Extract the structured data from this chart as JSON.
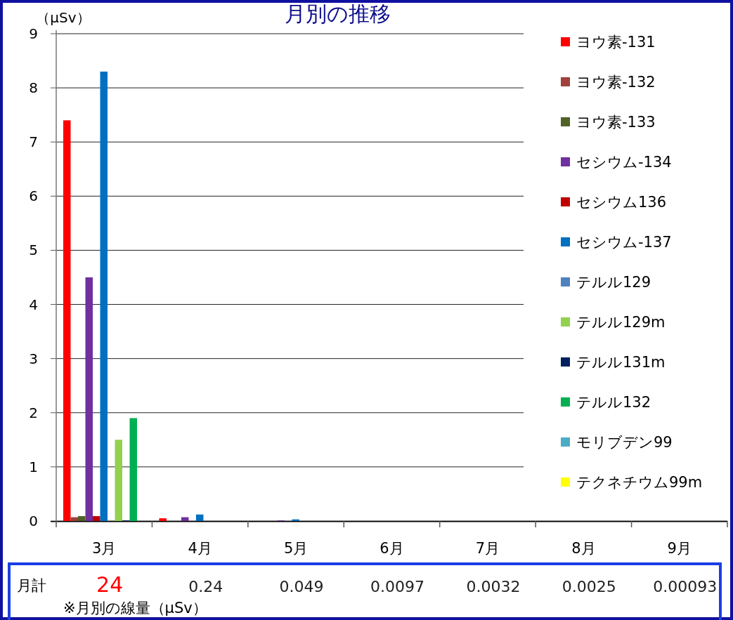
{
  "chart_data": {
    "type": "bar",
    "title": "月別の推移",
    "ylabel": "（μSv）",
    "categories": [
      "3月",
      "4月",
      "5月",
      "6月",
      "7月",
      "8月",
      "9月"
    ],
    "series": [
      {
        "name": "ヨウ素-131",
        "color": "#ff0000",
        "values": [
          7.4,
          0.05,
          0,
          0,
          0,
          0,
          0
        ]
      },
      {
        "name": "ヨウ素-132",
        "color": "#a0413c",
        "values": [
          0.07,
          0,
          0,
          0,
          0,
          0,
          0
        ]
      },
      {
        "name": "ヨウ素-133",
        "color": "#4f6228",
        "values": [
          0.09,
          0,
          0,
          0,
          0,
          0,
          0
        ]
      },
      {
        "name": "セシウム-134",
        "color": "#7030a0",
        "values": [
          4.5,
          0.07,
          0.01,
          0,
          0,
          0,
          0
        ]
      },
      {
        "name": "セシウム136",
        "color": "#c00000",
        "values": [
          0.09,
          0,
          0,
          0,
          0,
          0,
          0
        ]
      },
      {
        "name": "セシウム-137",
        "color": "#0070c0",
        "values": [
          8.3,
          0.12,
          0.03,
          0,
          0,
          0,
          0
        ]
      },
      {
        "name": "テルル129",
        "color": "#4f81bd",
        "values": [
          0,
          0,
          0,
          0,
          0,
          0,
          0
        ]
      },
      {
        "name": "テルル129m",
        "color": "#92d050",
        "values": [
          1.5,
          0,
          0,
          0,
          0,
          0,
          0
        ]
      },
      {
        "name": "テルル131m",
        "color": "#002060",
        "values": [
          0.01,
          0,
          0,
          0,
          0,
          0,
          0
        ]
      },
      {
        "name": "テルル132",
        "color": "#00b050",
        "values": [
          1.9,
          0,
          0,
          0,
          0,
          0,
          0
        ]
      },
      {
        "name": "モリブデン99",
        "color": "#4bacc6",
        "values": [
          0,
          0,
          0,
          0,
          0,
          0,
          0
        ]
      },
      {
        "name": "テクネチウム99m",
        "color": "#ffff00",
        "values": [
          0,
          0,
          0,
          0,
          0,
          0,
          0
        ]
      }
    ],
    "ylim": [
      0,
      9
    ],
    "yticks": [
      0,
      1,
      2,
      3,
      4,
      5,
      6,
      7,
      8,
      9
    ],
    "grid": "y",
    "legend": "right",
    "annotations": [
      "月計",
      "24",
      "0.24",
      "0.049",
      "0.0097",
      "0.0032",
      "0.0025",
      "0.00093",
      "※月別の線量（μSv）"
    ]
  }
}
